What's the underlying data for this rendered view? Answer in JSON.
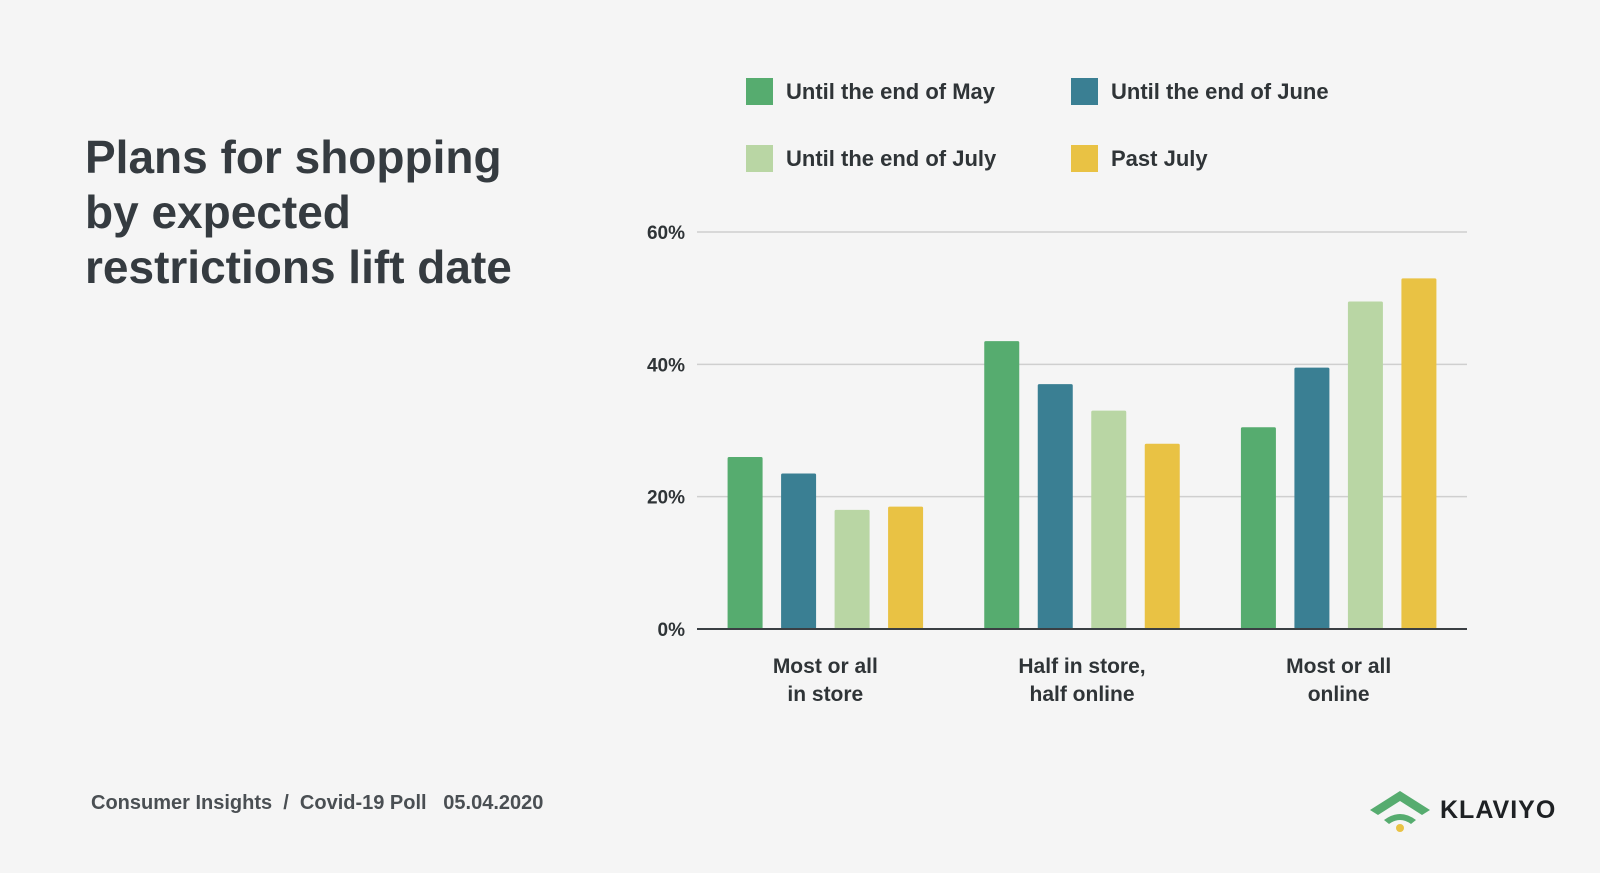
{
  "title": "Plans for shopping by expected restrictions lift date",
  "footer": {
    "source": "Consumer Insights  /  Covid-19 Poll   05.04.2020"
  },
  "logo": {
    "text": "KLAVIYO",
    "icon": "wifi-chevron-icon",
    "colors": [
      "#56ac6f",
      "#e9c244"
    ]
  },
  "chart_data": {
    "type": "bar",
    "categories": [
      "Most or all\nin store",
      "Half in store,\nhalf online",
      "Most or all\nonline"
    ],
    "series": [
      {
        "name": "Until the end of May",
        "color": "#56ac6f",
        "values": [
          26,
          43.5,
          30.5
        ]
      },
      {
        "name": "Until the end of June",
        "color": "#3a7f93",
        "values": [
          23.5,
          37,
          39.5
        ]
      },
      {
        "name": "Until the end of July",
        "color": "#b9d6a4",
        "values": [
          18,
          33,
          49.5
        ]
      },
      {
        "name": "Past July",
        "color": "#e9c244",
        "values": [
          18.5,
          28,
          53
        ]
      }
    ],
    "ylim": [
      0,
      60
    ],
    "yticks": [
      0,
      20,
      40,
      60
    ],
    "ytick_labels": [
      "0%",
      "20%",
      "40%",
      "60%"
    ],
    "grid": true,
    "legend_position": "top"
  }
}
